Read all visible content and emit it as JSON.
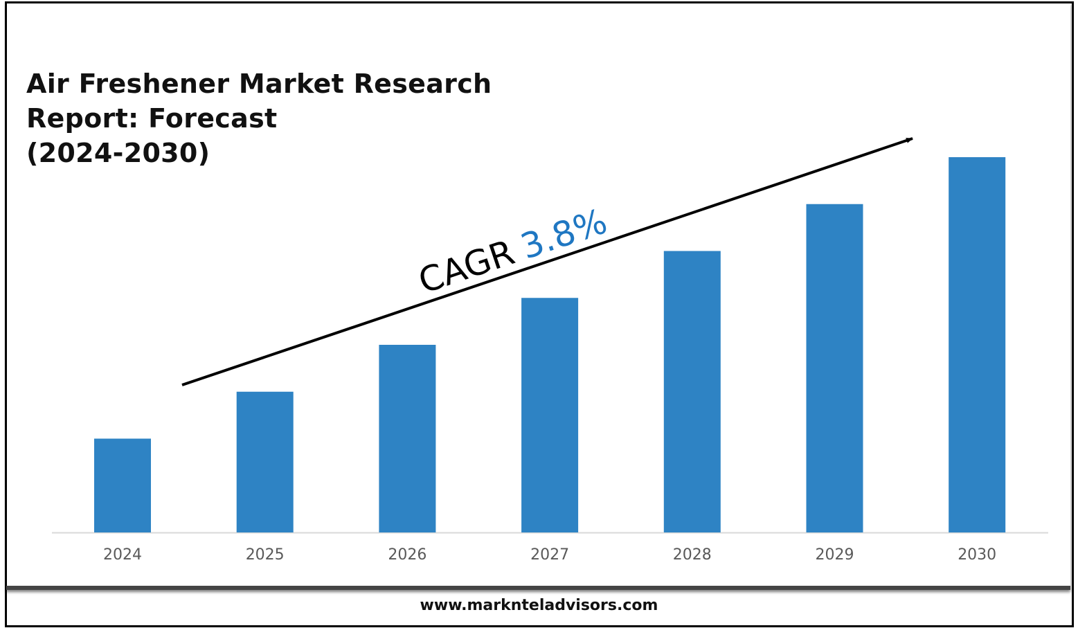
{
  "chart_data": {
    "type": "bar",
    "title": "Air Freshener Market Research Report: Forecast (2024-2030)",
    "title_lines": [
      "Air Freshener Market Research",
      "Report: Forecast",
      "(2024-2030)"
    ],
    "categories": [
      "2024",
      "2025",
      "2026",
      "2027",
      "2028",
      "2029",
      "2030"
    ],
    "values": [
      2.0,
      3.0,
      4.0,
      5.0,
      6.0,
      7.0,
      8.0
    ],
    "value_units": "relative (no y-axis printed)",
    "ylim": [
      0,
      8
    ],
    "grid": false,
    "legend": "none",
    "bar_color": "#2e83c4",
    "annotation": {
      "label": "CAGR",
      "value": "3.8%",
      "value_color": "#1f77c2"
    }
  },
  "footer": {
    "url": "www.marknteladvisors.com"
  }
}
